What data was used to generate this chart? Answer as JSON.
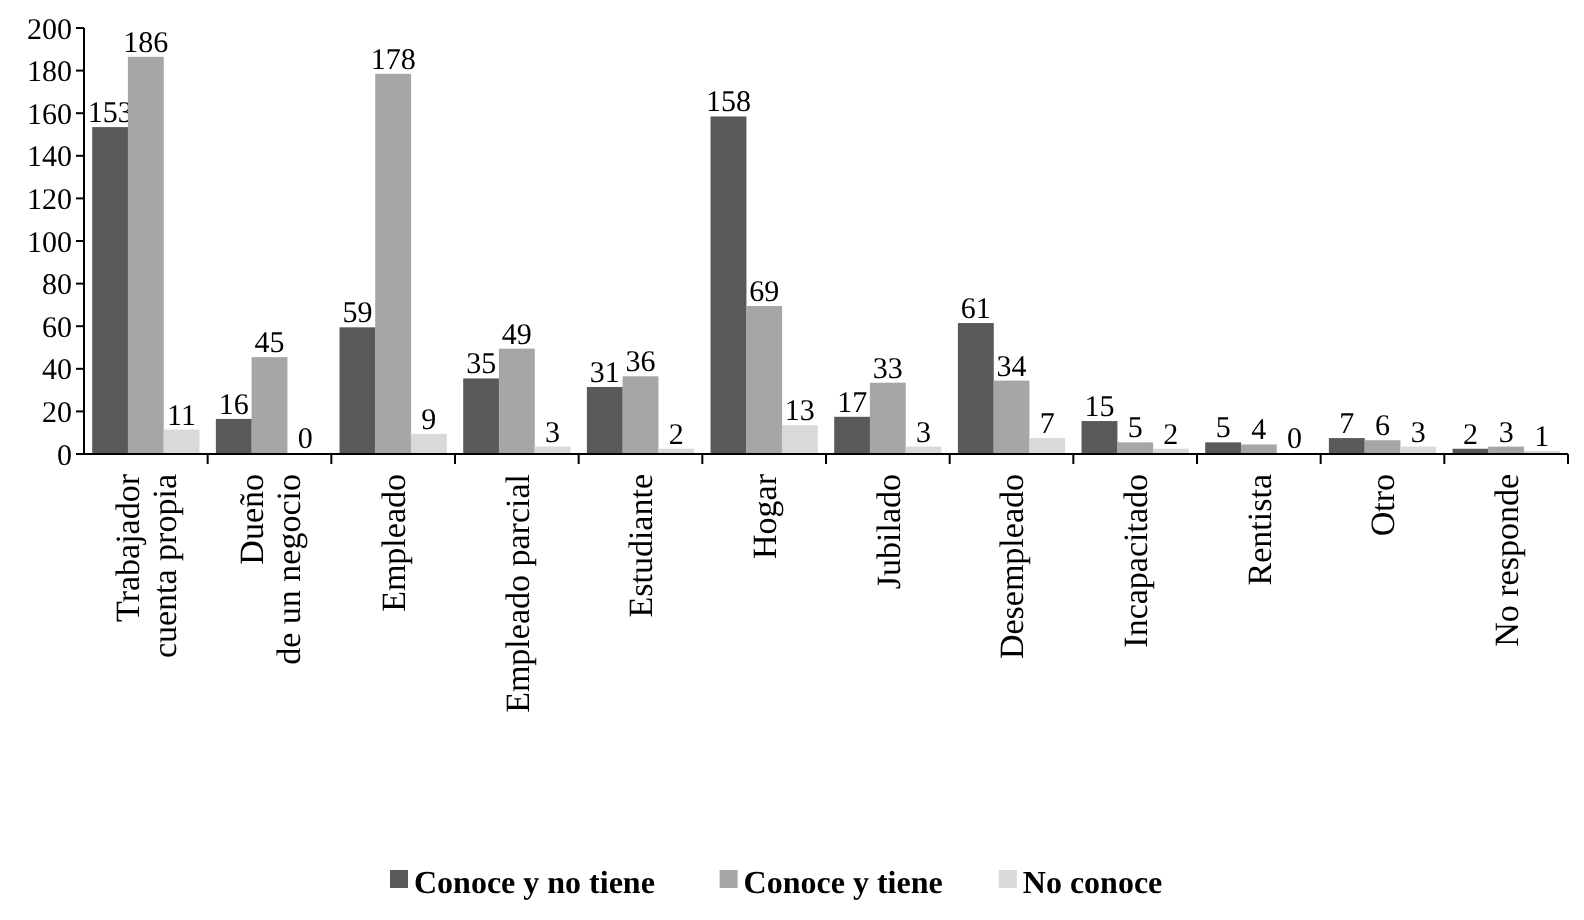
{
  "chart_data": {
    "type": "bar",
    "categories": [
      "Trabajador\ncuenta propia",
      "Dueño\nde un negocio",
      "Empleado",
      "Empleado parcial",
      "Estudiante",
      "Hogar",
      "Jubilado",
      "Desempleado",
      "Incapacitado",
      "Rentista",
      "Otro",
      "No responde"
    ],
    "series": [
      {
        "name": "Conoce y no tiene",
        "color": "#595959",
        "values": [
          153,
          16,
          59,
          35,
          31,
          158,
          17,
          61,
          15,
          5,
          7,
          2
        ]
      },
      {
        "name": "Conoce y tiene",
        "color": "#a6a6a6",
        "values": [
          186,
          45,
          178,
          49,
          36,
          69,
          33,
          34,
          5,
          4,
          6,
          3
        ]
      },
      {
        "name": "No conoce",
        "color": "#d9d9d9",
        "values": [
          11,
          0,
          9,
          3,
          2,
          13,
          3,
          7,
          2,
          0,
          3,
          1
        ]
      }
    ],
    "ylim": [
      0,
      200
    ],
    "yticks": [
      0,
      20,
      40,
      60,
      80,
      100,
      120,
      140,
      160,
      180,
      200
    ],
    "data_labels": true,
    "legend": "bottom",
    "grid": false
  }
}
